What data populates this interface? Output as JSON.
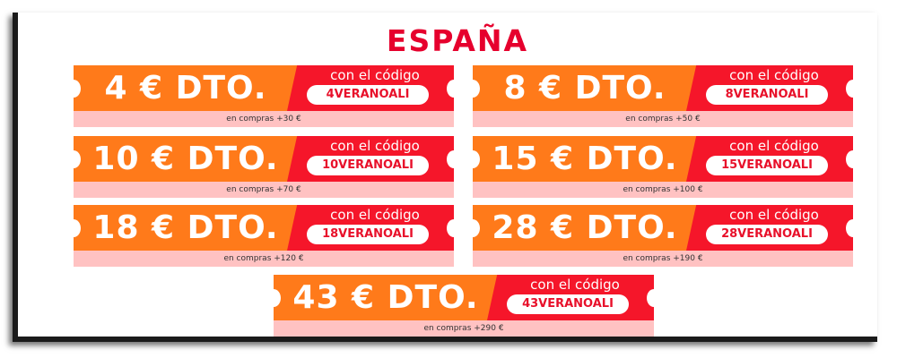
{
  "title": "ESPAÑA",
  "coupons": [
    {
      "amount": "4 € DTO.",
      "label": "con el código",
      "code": "4VERANOALI",
      "condition": "en compras +30 €"
    },
    {
      "amount": "8 € DTO.",
      "label": "con el código",
      "code": "8VERANOALI",
      "condition": "en compras +50 €"
    },
    {
      "amount": "10 € DTO.",
      "label": "con el código",
      "code": "10VERANOALI",
      "condition": "en compras +70 €"
    },
    {
      "amount": "15 € DTO.",
      "label": "con el código",
      "code": "15VERANOALI",
      "condition": "en compras +100 €"
    },
    {
      "amount": "18 € DTO.",
      "label": "con el código",
      "code": "18VERANOALI",
      "condition": "en compras +120 €"
    },
    {
      "amount": "28 € DTO.",
      "label": "con el código",
      "code": "28VERANOALI",
      "condition": "en compras +190 €"
    },
    {
      "amount": "43 € DTO.",
      "label": "con el código",
      "code": "43VERANOALI",
      "condition": "en compras +290 €"
    }
  ],
  "colors": {
    "orange": "#ff7a1a",
    "red": "#f5162a",
    "pink": "#ffc2c2",
    "title": "#e6002d"
  }
}
